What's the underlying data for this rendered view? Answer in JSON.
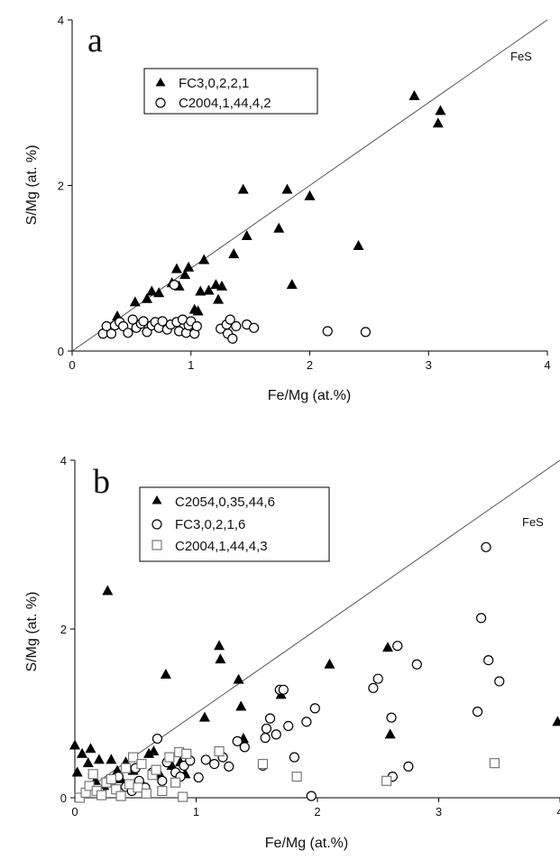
{
  "figure": {
    "panels": [
      {
        "letter": "a",
        "xlabel": "Fe/Mg (at.%)",
        "ylabel": "S/Mg (at. %)",
        "line_label": "FeS",
        "legend": [
          "FC3,0,2,2,1",
          "C2004,1,44,4,2"
        ]
      },
      {
        "letter": "b",
        "xlabel": "Fe/Mg (at.%)",
        "ylabel": "S/Mg (at. %)",
        "line_label": "FeS",
        "legend": [
          "C2054,0,35,44,6",
          "FC3,0,2,1,6",
          "C2004,1,44,4,3"
        ]
      }
    ]
  },
  "chart_data": [
    {
      "type": "scatter",
      "panel": "a",
      "xlabel": "Fe/Mg (at.%)",
      "ylabel": "S/Mg (at. %)",
      "xlim": [
        0,
        4
      ],
      "ylim": [
        0,
        4
      ],
      "xticks": [
        0,
        1,
        2,
        3,
        4
      ],
      "yticks": [
        0,
        2,
        4
      ],
      "grid": false,
      "legend_position": "top-left",
      "reference_line": {
        "label": "FeS",
        "x": [
          0,
          4
        ],
        "y": [
          0,
          4
        ]
      },
      "series": [
        {
          "name": "FC3,0,2,2,1",
          "marker": "triangle-filled",
          "points": [
            [
              0.38,
              0.42
            ],
            [
              0.53,
              0.59
            ],
            [
              0.63,
              0.63
            ],
            [
              0.67,
              0.72
            ],
            [
              0.73,
              0.7
            ],
            [
              0.84,
              0.82
            ],
            [
              0.88,
              0.99
            ],
            [
              0.9,
              0.78
            ],
            [
              0.95,
              0.92
            ],
            [
              0.98,
              1.01
            ],
            [
              1.03,
              0.5
            ],
            [
              1.06,
              0.48
            ],
            [
              1.08,
              0.72
            ],
            [
              1.11,
              1.1
            ],
            [
              1.15,
              0.73
            ],
            [
              1.21,
              0.8
            ],
            [
              1.23,
              0.62
            ],
            [
              1.26,
              0.78
            ],
            [
              1.36,
              1.17
            ],
            [
              1.44,
              1.95
            ],
            [
              1.47,
              1.39
            ],
            [
              1.74,
              1.48
            ],
            [
              1.81,
              1.95
            ],
            [
              1.85,
              0.8
            ],
            [
              2.0,
              1.87
            ],
            [
              2.41,
              1.27
            ],
            [
              2.88,
              3.08
            ],
            [
              3.08,
              2.75
            ],
            [
              3.1,
              2.9
            ]
          ]
        },
        {
          "name": "C2004,1,44,4,2",
          "marker": "circle-open",
          "points": [
            [
              0.26,
              0.21
            ],
            [
              0.29,
              0.3
            ],
            [
              0.33,
              0.21
            ],
            [
              0.36,
              0.31
            ],
            [
              0.4,
              0.35
            ],
            [
              0.43,
              0.3
            ],
            [
              0.47,
              0.22
            ],
            [
              0.51,
              0.38
            ],
            [
              0.54,
              0.28
            ],
            [
              0.58,
              0.33
            ],
            [
              0.6,
              0.36
            ],
            [
              0.63,
              0.23
            ],
            [
              0.67,
              0.31
            ],
            [
              0.7,
              0.35
            ],
            [
              0.73,
              0.28
            ],
            [
              0.76,
              0.36
            ],
            [
              0.8,
              0.26
            ],
            [
              0.83,
              0.32
            ],
            [
              0.86,
              0.8
            ],
            [
              0.88,
              0.35
            ],
            [
              0.9,
              0.24
            ],
            [
              0.93,
              0.38
            ],
            [
              0.96,
              0.22
            ],
            [
              0.98,
              0.31
            ],
            [
              1.0,
              0.36
            ],
            [
              1.03,
              0.21
            ],
            [
              1.05,
              0.3
            ],
            [
              1.25,
              0.27
            ],
            [
              1.3,
              0.32
            ],
            [
              1.31,
              0.21
            ],
            [
              1.33,
              0.38
            ],
            [
              1.35,
              0.15
            ],
            [
              1.38,
              0.3
            ],
            [
              1.47,
              0.32
            ],
            [
              1.53,
              0.28
            ],
            [
              2.15,
              0.24
            ],
            [
              2.47,
              0.23
            ]
          ]
        }
      ]
    },
    {
      "type": "scatter",
      "panel": "b",
      "xlabel": "Fe/Mg (at.%)",
      "ylabel": "S/Mg (at. %)",
      "xlim": [
        0,
        4
      ],
      "ylim": [
        0,
        4
      ],
      "xticks": [
        0,
        1,
        2,
        3,
        4
      ],
      "yticks": [
        0,
        2,
        4
      ],
      "grid": false,
      "legend_position": "top-left",
      "reference_line": {
        "label": "FeS",
        "x": [
          0,
          4
        ],
        "y": [
          0,
          4
        ]
      },
      "series": [
        {
          "name": "C2054,0,35,44,6",
          "marker": "triangle-filled",
          "points": [
            [
              0.0,
              0.62
            ],
            [
              0.02,
              0.3
            ],
            [
              0.06,
              0.52
            ],
            [
              0.11,
              0.41
            ],
            [
              0.13,
              0.58
            ],
            [
              0.17,
              0.2
            ],
            [
              0.2,
              0.45
            ],
            [
              0.24,
              0.14
            ],
            [
              0.27,
              2.45
            ],
            [
              0.3,
              0.45
            ],
            [
              0.35,
              0.32
            ],
            [
              0.38,
              0.22
            ],
            [
              0.42,
              0.42
            ],
            [
              0.48,
              0.32
            ],
            [
              0.55,
              0.18
            ],
            [
              0.61,
              0.52
            ],
            [
              0.65,
              0.55
            ],
            [
              0.7,
              0.28
            ],
            [
              0.75,
              1.46
            ],
            [
              0.8,
              0.38
            ],
            [
              0.87,
              0.42
            ],
            [
              0.91,
              0.28
            ],
            [
              1.07,
              0.95
            ],
            [
              1.19,
              1.8
            ],
            [
              1.2,
              1.64
            ],
            [
              1.35,
              1.4
            ],
            [
              1.37,
              1.08
            ],
            [
              1.39,
              0.7
            ],
            [
              1.7,
              1.22
            ],
            [
              2.1,
              1.58
            ],
            [
              2.58,
              1.78
            ],
            [
              2.6,
              0.75
            ],
            [
              3.98,
              0.9
            ]
          ]
        },
        {
          "name": "FC3,0,2,1,6",
          "marker": "circle-open",
          "points": [
            [
              0.2,
              0.08
            ],
            [
              0.3,
              0.2
            ],
            [
              0.36,
              0.25
            ],
            [
              0.42,
              0.13
            ],
            [
              0.47,
              0.08
            ],
            [
              0.5,
              0.35
            ],
            [
              0.53,
              0.2
            ],
            [
              0.58,
              0.12
            ],
            [
              0.64,
              0.3
            ],
            [
              0.68,
              0.7
            ],
            [
              0.72,
              0.2
            ],
            [
              0.76,
              0.42
            ],
            [
              0.83,
              0.3
            ],
            [
              0.87,
              0.25
            ],
            [
              0.9,
              0.38
            ],
            [
              0.95,
              0.44
            ],
            [
              1.02,
              0.24
            ],
            [
              1.08,
              0.45
            ],
            [
              1.15,
              0.4
            ],
            [
              1.22,
              0.48
            ],
            [
              1.27,
              0.37
            ],
            [
              1.34,
              0.67
            ],
            [
              1.4,
              0.6
            ],
            [
              1.55,
              0.38
            ],
            [
              1.57,
              0.71
            ],
            [
              1.58,
              0.82
            ],
            [
              1.61,
              0.94
            ],
            [
              1.66,
              0.75
            ],
            [
              1.69,
              1.28
            ],
            [
              1.72,
              1.28
            ],
            [
              1.76,
              0.85
            ],
            [
              1.81,
              0.48
            ],
            [
              1.91,
              0.9
            ],
            [
              1.95,
              0.02
            ],
            [
              1.98,
              1.06
            ],
            [
              2.46,
              1.3
            ],
            [
              2.5,
              1.41
            ],
            [
              2.61,
              0.95
            ],
            [
              2.62,
              0.25
            ],
            [
              2.66,
              1.8
            ],
            [
              2.75,
              0.37
            ],
            [
              2.82,
              1.58
            ],
            [
              3.32,
              1.02
            ],
            [
              3.35,
              2.13
            ],
            [
              3.39,
              2.97
            ],
            [
              3.41,
              1.63
            ],
            [
              3.5,
              1.38
            ]
          ]
        },
        {
          "name": "C2004,1,44,4,3",
          "marker": "square-open",
          "points": [
            [
              0.04,
              0.0
            ],
            [
              0.09,
              0.06
            ],
            [
              0.12,
              0.14
            ],
            [
              0.15,
              0.28
            ],
            [
              0.18,
              0.08
            ],
            [
              0.22,
              0.03
            ],
            [
              0.26,
              0.18
            ],
            [
              0.3,
              0.22
            ],
            [
              0.34,
              0.1
            ],
            [
              0.38,
              0.02
            ],
            [
              0.42,
              0.35
            ],
            [
              0.45,
              0.16
            ],
            [
              0.48,
              0.48
            ],
            [
              0.52,
              0.12
            ],
            [
              0.55,
              0.4
            ],
            [
              0.59,
              0.05
            ],
            [
              0.64,
              0.27
            ],
            [
              0.67,
              0.33
            ],
            [
              0.72,
              0.08
            ],
            [
              0.78,
              0.48
            ],
            [
              0.83,
              0.18
            ],
            [
              0.86,
              0.54
            ],
            [
              0.89,
              0.01
            ],
            [
              0.92,
              0.52
            ],
            [
              1.19,
              0.55
            ],
            [
              1.55,
              0.4
            ],
            [
              1.83,
              0.25
            ],
            [
              2.57,
              0.2
            ],
            [
              3.46,
              0.41
            ]
          ]
        }
      ]
    }
  ]
}
